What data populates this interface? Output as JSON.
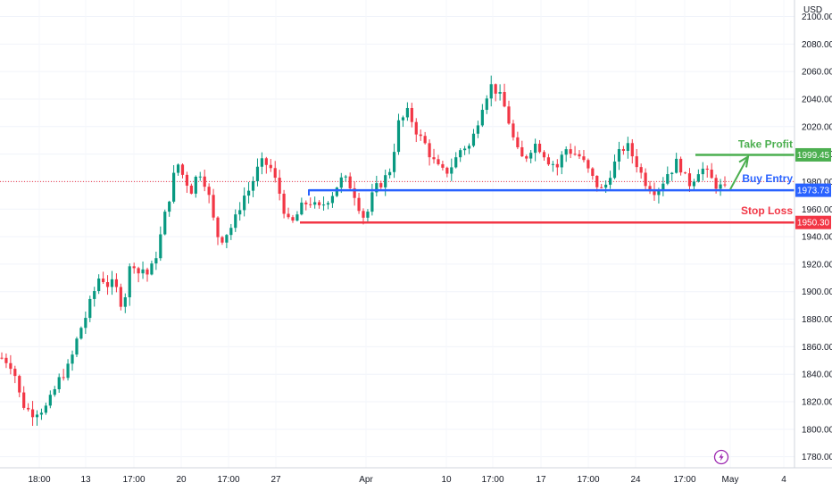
{
  "chart_data": {
    "type": "candlestick",
    "currency": "USD",
    "ylim": [
      1772,
      2112
    ],
    "y_ticks": [
      1780,
      1800,
      1820,
      1840,
      1860,
      1880,
      1900,
      1920,
      1940,
      1960,
      1980,
      2000,
      2020,
      2040,
      2060,
      2080,
      2100
    ],
    "y_tick_labels": [
      "1780.00",
      "1800.00",
      "1820.00",
      "1840.00",
      "1860.00",
      "1880.00",
      "1900.00",
      "1920.00",
      "1940.00",
      "1960.00",
      "1980.00",
      "2000.00",
      "2020.00",
      "2040.00",
      "2060.00",
      "2080.00",
      "2100.00"
    ],
    "x_tick_labels": [
      "18:00",
      "13",
      "17:00",
      "20",
      "17:00",
      "27",
      "Apr",
      "10",
      "17:00",
      "17",
      "17:00",
      "24",
      "17:00",
      "May",
      "4"
    ],
    "current_price": 1980,
    "levels": [
      {
        "name": "Take Profit",
        "value": 1999.45,
        "label": "1999.45",
        "color": "#4caf50"
      },
      {
        "name": "Buy Entry",
        "value": 1973.73,
        "label": "1973.73",
        "color": "#2962ff"
      },
      {
        "name": "Stop Loss",
        "value": 1950.3,
        "label": "1950.30",
        "color": "#f23645"
      }
    ],
    "up_color": "#089981",
    "down_color": "#f23645",
    "path_points": [
      1852,
      1850,
      1847,
      1838,
      1822,
      1816,
      1813,
      1812,
      1815,
      1814,
      1818,
      1826,
      1834,
      1840,
      1843,
      1852,
      1864,
      1874,
      1882,
      1892,
      1902,
      1912,
      1908,
      1904,
      1906,
      1898,
      1888,
      1910,
      1926,
      1912,
      1918,
      1912,
      1916,
      1926,
      1940,
      1956,
      1970,
      1986,
      1994,
      1982,
      1978,
      1972,
      1990,
      1984,
      1976,
      1958,
      1942,
      1938,
      1942,
      1946,
      1952,
      1962,
      1970,
      1974,
      1982,
      1990,
      1994,
      1992,
      1988,
      1976,
      1968,
      1952,
      1948,
      1954,
      1960,
      1964,
      1966,
      1962,
      1960,
      1964,
      1968,
      1972,
      1978,
      1982,
      1980,
      1976,
      1968,
      1958,
      1952,
      1966,
      1974,
      1978,
      1982,
      1986,
      2002,
      2022,
      2026,
      2030,
      2024,
      2016,
      2010,
      2006,
      1998,
      1992,
      1988,
      1986,
      1990,
      1994,
      2002,
      2006,
      2004,
      2012,
      2024,
      2036,
      2044,
      2050,
      2046,
      2040,
      2032,
      2020,
      2006,
      1998,
      1996,
      2002,
      2008,
      2006,
      2002,
      1996,
      1994,
      1990,
      1998,
      2004,
      2002,
      2000,
      1998,
      1992,
      1986,
      1980,
      1976,
      1972,
      1984,
      1990,
      1998,
      2004,
      2006,
      2000,
      1994,
      1986,
      1980,
      1976,
      1974,
      1976,
      1982,
      1988,
      1990,
      1996,
      1986,
      1978,
      1980,
      1988,
      1990,
      1986,
      1982,
      1978,
      1976,
      1974
    ],
    "last_candle_index": 164
  },
  "watermark": {
    "icon": "lightning-icon"
  }
}
